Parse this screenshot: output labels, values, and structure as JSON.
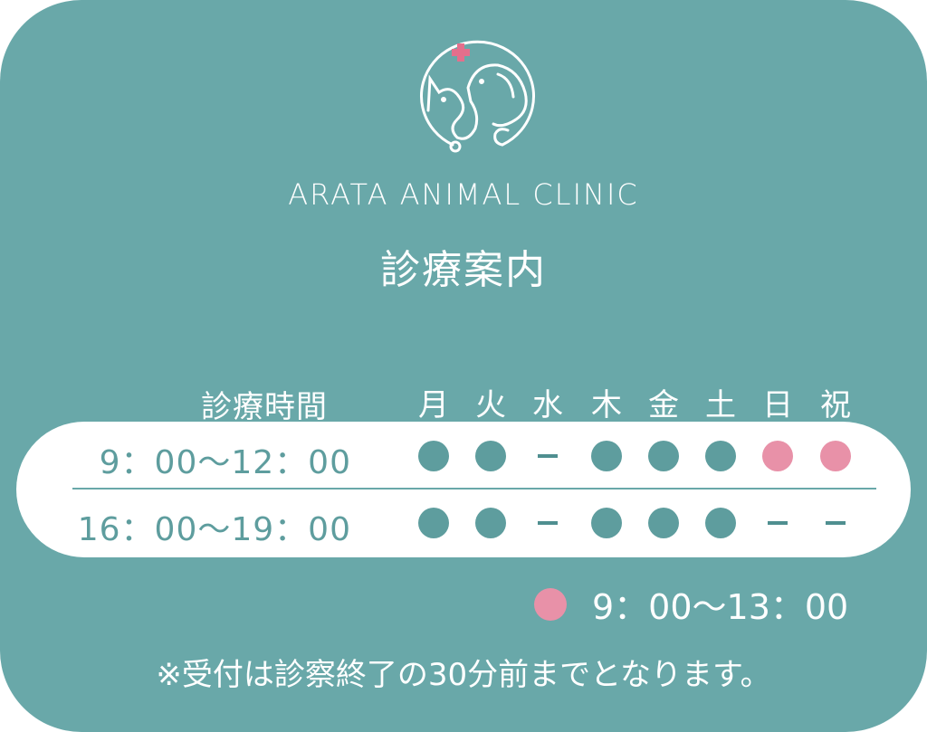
{
  "brand": "ARATA ANIMAL CLINIC",
  "title": "診療案内",
  "schedule": {
    "header": "診療時間",
    "days": [
      "月",
      "火",
      "水",
      "木",
      "金",
      "土",
      "日",
      "祝"
    ],
    "rows": [
      {
        "time": "9：00〜12：00",
        "marks": [
          "open",
          "open",
          "closed",
          "open",
          "open",
          "open",
          "short",
          "short"
        ]
      },
      {
        "time": "16：00〜19：00",
        "marks": [
          "open",
          "open",
          "closed",
          "open",
          "open",
          "open",
          "closed",
          "closed"
        ]
      }
    ]
  },
  "legend": {
    "text": "9：00〜13：00",
    "mark": "short"
  },
  "note": "※受付は診察終了の30分前までとなります。",
  "colors": {
    "background": "#69a8a9",
    "open": "#5e9d9e",
    "short": "#e891a8",
    "text_on_white": "#5e9d9e"
  },
  "icons": {
    "logo": "cat-dog-stethoscope-cross-logo"
  }
}
